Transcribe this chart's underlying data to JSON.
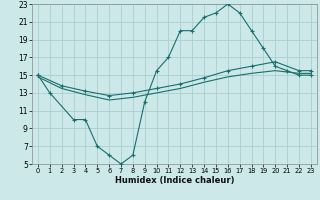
{
  "xlabel": "Humidex (Indice chaleur)",
  "bg_color": "#cce8e8",
  "grid_color": "#aacece",
  "line_color": "#1a6e6e",
  "line1_x": [
    0,
    1,
    3,
    4,
    5,
    6,
    7,
    8,
    9,
    10,
    11,
    12,
    13,
    14,
    15,
    16,
    17,
    18,
    19,
    20,
    21,
    22,
    23
  ],
  "line1_y": [
    15,
    13,
    10,
    10,
    7,
    6,
    5,
    6,
    12,
    15.5,
    17,
    20,
    20,
    21.5,
    22,
    23,
    22,
    20,
    18,
    16,
    15.5,
    15,
    15
  ],
  "line2_x": [
    0,
    2,
    4,
    6,
    8,
    10,
    12,
    14,
    16,
    18,
    20,
    22,
    23
  ],
  "line2_y": [
    15.0,
    13.8,
    13.2,
    12.7,
    13.0,
    13.5,
    14.0,
    14.7,
    15.5,
    16.0,
    16.5,
    15.5,
    15.5
  ],
  "line3_x": [
    0,
    2,
    4,
    6,
    8,
    10,
    12,
    14,
    16,
    18,
    20,
    22,
    23
  ],
  "line3_y": [
    14.8,
    13.5,
    12.8,
    12.2,
    12.5,
    13.0,
    13.5,
    14.2,
    14.8,
    15.2,
    15.5,
    15.2,
    15.2
  ],
  "xlim": [
    -0.5,
    23.5
  ],
  "ylim": [
    5,
    23
  ],
  "yticks": [
    5,
    7,
    9,
    11,
    13,
    15,
    17,
    19,
    21,
    23
  ],
  "xticks": [
    0,
    1,
    2,
    3,
    4,
    5,
    6,
    7,
    8,
    9,
    10,
    11,
    12,
    13,
    14,
    15,
    16,
    17,
    18,
    19,
    20,
    21,
    22,
    23
  ]
}
